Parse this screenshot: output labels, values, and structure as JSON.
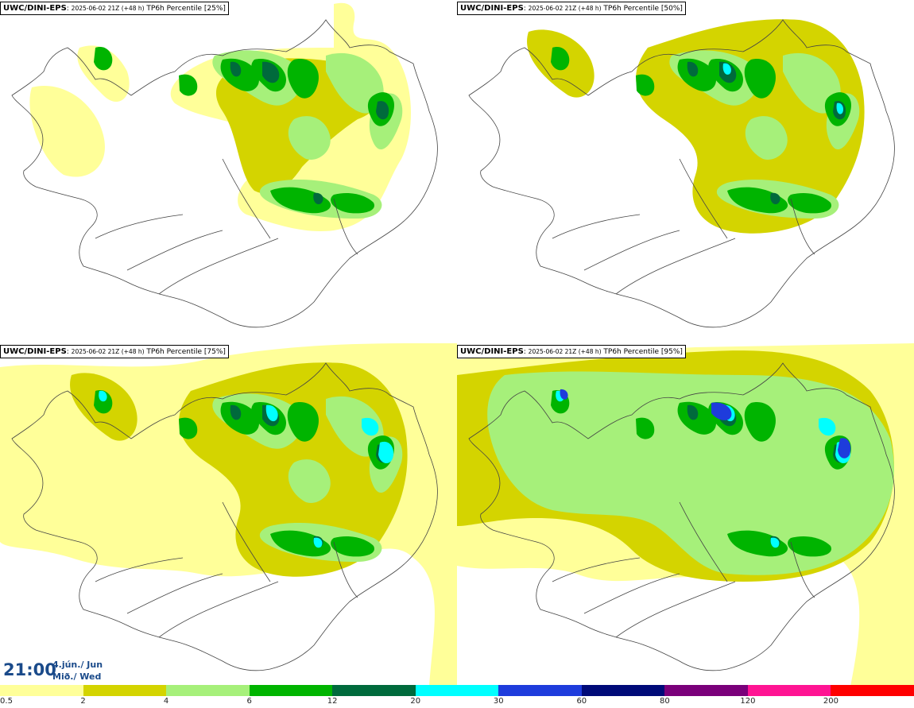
{
  "panels": [
    {
      "model": "UWC/DINI-EPS",
      "run": "2025-06-02 21Z (+48 h)",
      "title": "TP6h Percentile [25%]"
    },
    {
      "model": "UWC/DINI-EPS",
      "run": "2025-06-02 21Z (+48 h)",
      "title": "TP6h Percentile [50%]"
    },
    {
      "model": "UWC/DINI-EPS",
      "run": "2025-06-02 21Z (+48 h)",
      "title": "TP6h Percentile [75%]"
    },
    {
      "model": "UWC/DINI-EPS",
      "run": "2025-06-02 21Z (+48 h)",
      "title": "TP6h Percentile [95%]"
    }
  ],
  "valid_time": {
    "time": "21:00",
    "date": "4.jún./ Jun",
    "day": "Mið./ Wed"
  },
  "legend": {
    "levels": [
      "0.5",
      "2",
      "4",
      "6",
      "12",
      "20",
      "30",
      "60",
      "80",
      "120",
      "200"
    ],
    "colors": [
      "#ffff99",
      "#d4d400",
      "#a6f07a",
      "#00b400",
      "#006a3c",
      "#00ffff",
      "#1e3cdc",
      "#000a78",
      "#7a007a",
      "#ff1493",
      "#ff0000"
    ]
  }
}
